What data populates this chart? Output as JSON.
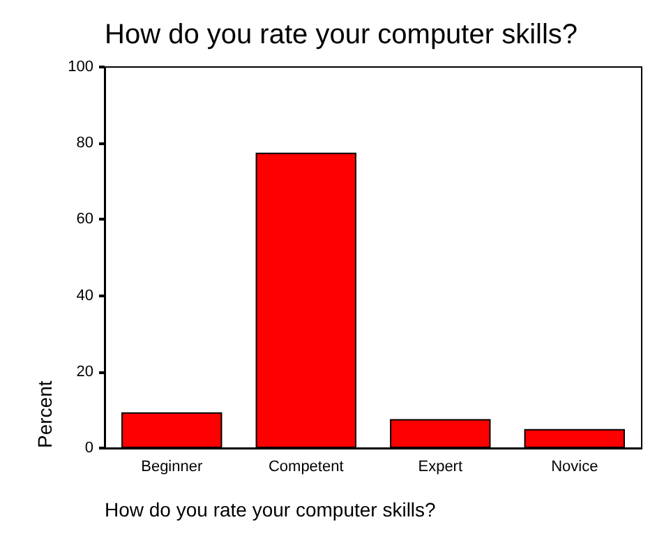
{
  "chart_data": {
    "type": "bar",
    "title": "How do you rate your computer skills?",
    "xlabel": "How do you rate your computer skills?",
    "ylabel": "Percent",
    "categories": [
      "Beginner",
      "Competent",
      "Expert",
      "Novice"
    ],
    "values": [
      9.4,
      77.5,
      7.6,
      5.0
    ],
    "color": "#ff0000",
    "ylim": [
      0,
      100
    ],
    "yticks": [
      0,
      20,
      40,
      60,
      80,
      100
    ],
    "grid": false
  }
}
